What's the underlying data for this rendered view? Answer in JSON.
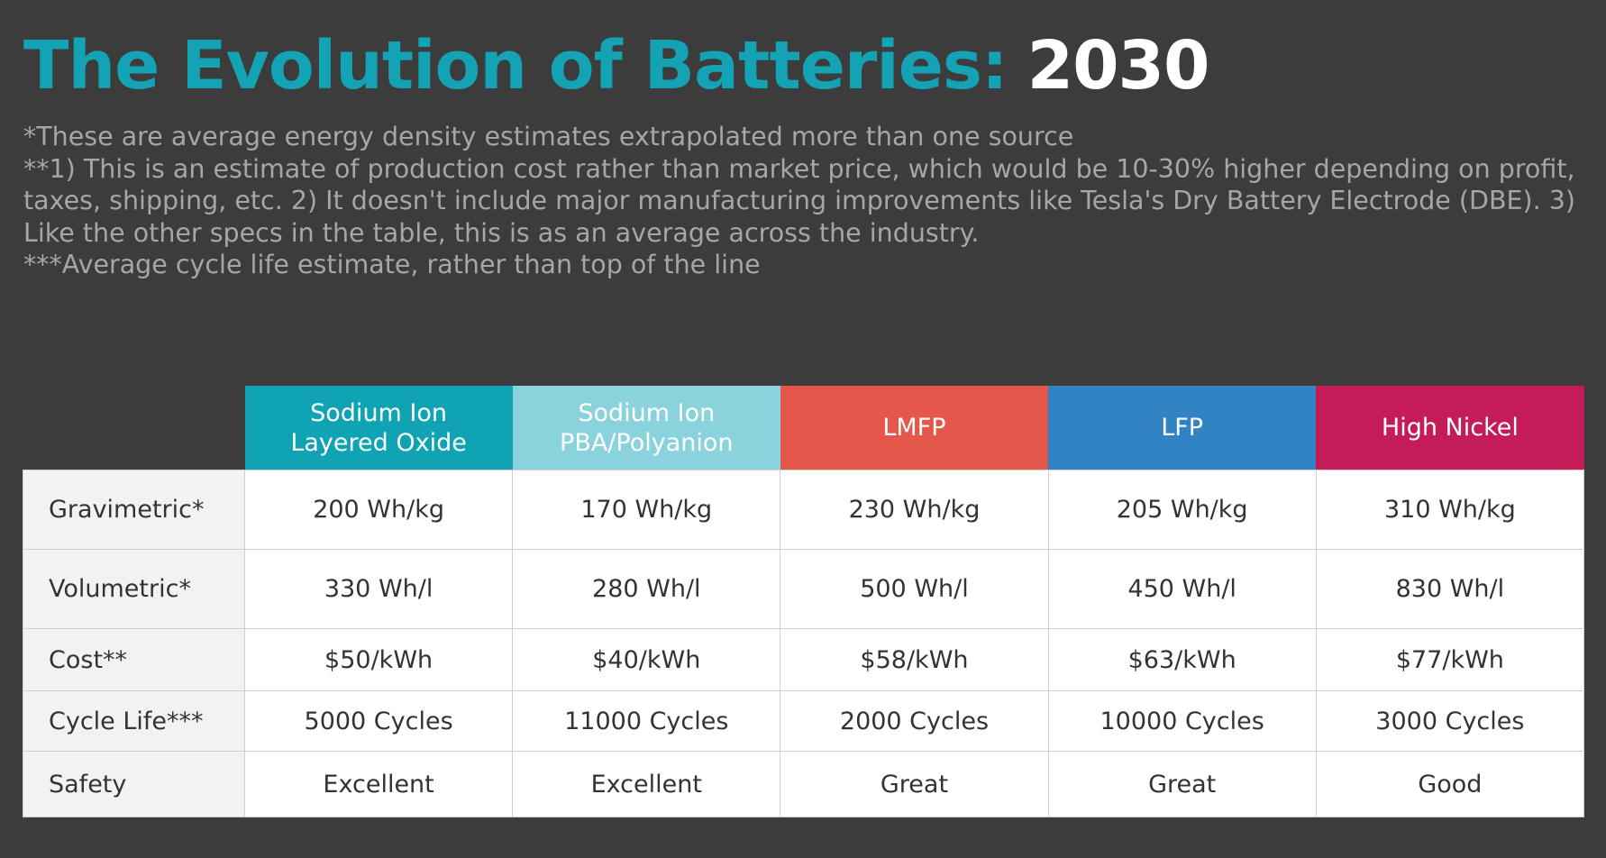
{
  "title": {
    "main": "The Evolution of Batteries:",
    "year": "2030"
  },
  "notes": [
    "*These are average energy density estimates extrapolated more than one source",
    "**1) This is an estimate of production cost rather than market price, which would be 10-30% higher depending on profit, taxes, shipping, etc.  2) It doesn't include major manufacturing improvements like Tesla's Dry Battery Electrode (DBE).  3) Like the other specs in the table, this is as an average across the industry.",
    "***Average cycle life estimate, rather than top of the line"
  ],
  "table": {
    "columns": [
      {
        "line1": "Sodium Ion",
        "line2": "Layered Oxide",
        "color": "#0fa3b4"
      },
      {
        "line1": "Sodium Ion",
        "line2": "PBA/Polyanion",
        "color": "#8ad3dc"
      },
      {
        "line1": "LMFP",
        "line2": "",
        "color": "#e5564b"
      },
      {
        "line1": "LFP",
        "line2": "",
        "color": "#3283c3"
      },
      {
        "line1": "High Nickel",
        "line2": "",
        "color": "#c41c59"
      }
    ],
    "rows": [
      {
        "label": "Gravimetric*",
        "values": [
          "200 Wh/kg",
          "170 Wh/kg",
          "230 Wh/kg",
          "205 Wh/kg",
          "310 Wh/kg"
        ]
      },
      {
        "label": "Volumetric*",
        "values": [
          "330 Wh/l",
          "280 Wh/l",
          "500 Wh/l",
          "450 Wh/l",
          "830 Wh/l"
        ]
      },
      {
        "label": "Cost**",
        "values": [
          "$50/kWh",
          "$40/kWh",
          "$58/kWh",
          "$63/kWh",
          "$77/kWh"
        ]
      },
      {
        "label": "Cycle Life***",
        "values": [
          "5000 Cycles",
          "11000 Cycles",
          "2000 Cycles",
          "10000 Cycles",
          "3000 Cycles"
        ]
      },
      {
        "label": "Safety",
        "values": [
          "Excellent",
          "Excellent",
          "Great",
          "Great",
          "Good"
        ]
      }
    ]
  }
}
